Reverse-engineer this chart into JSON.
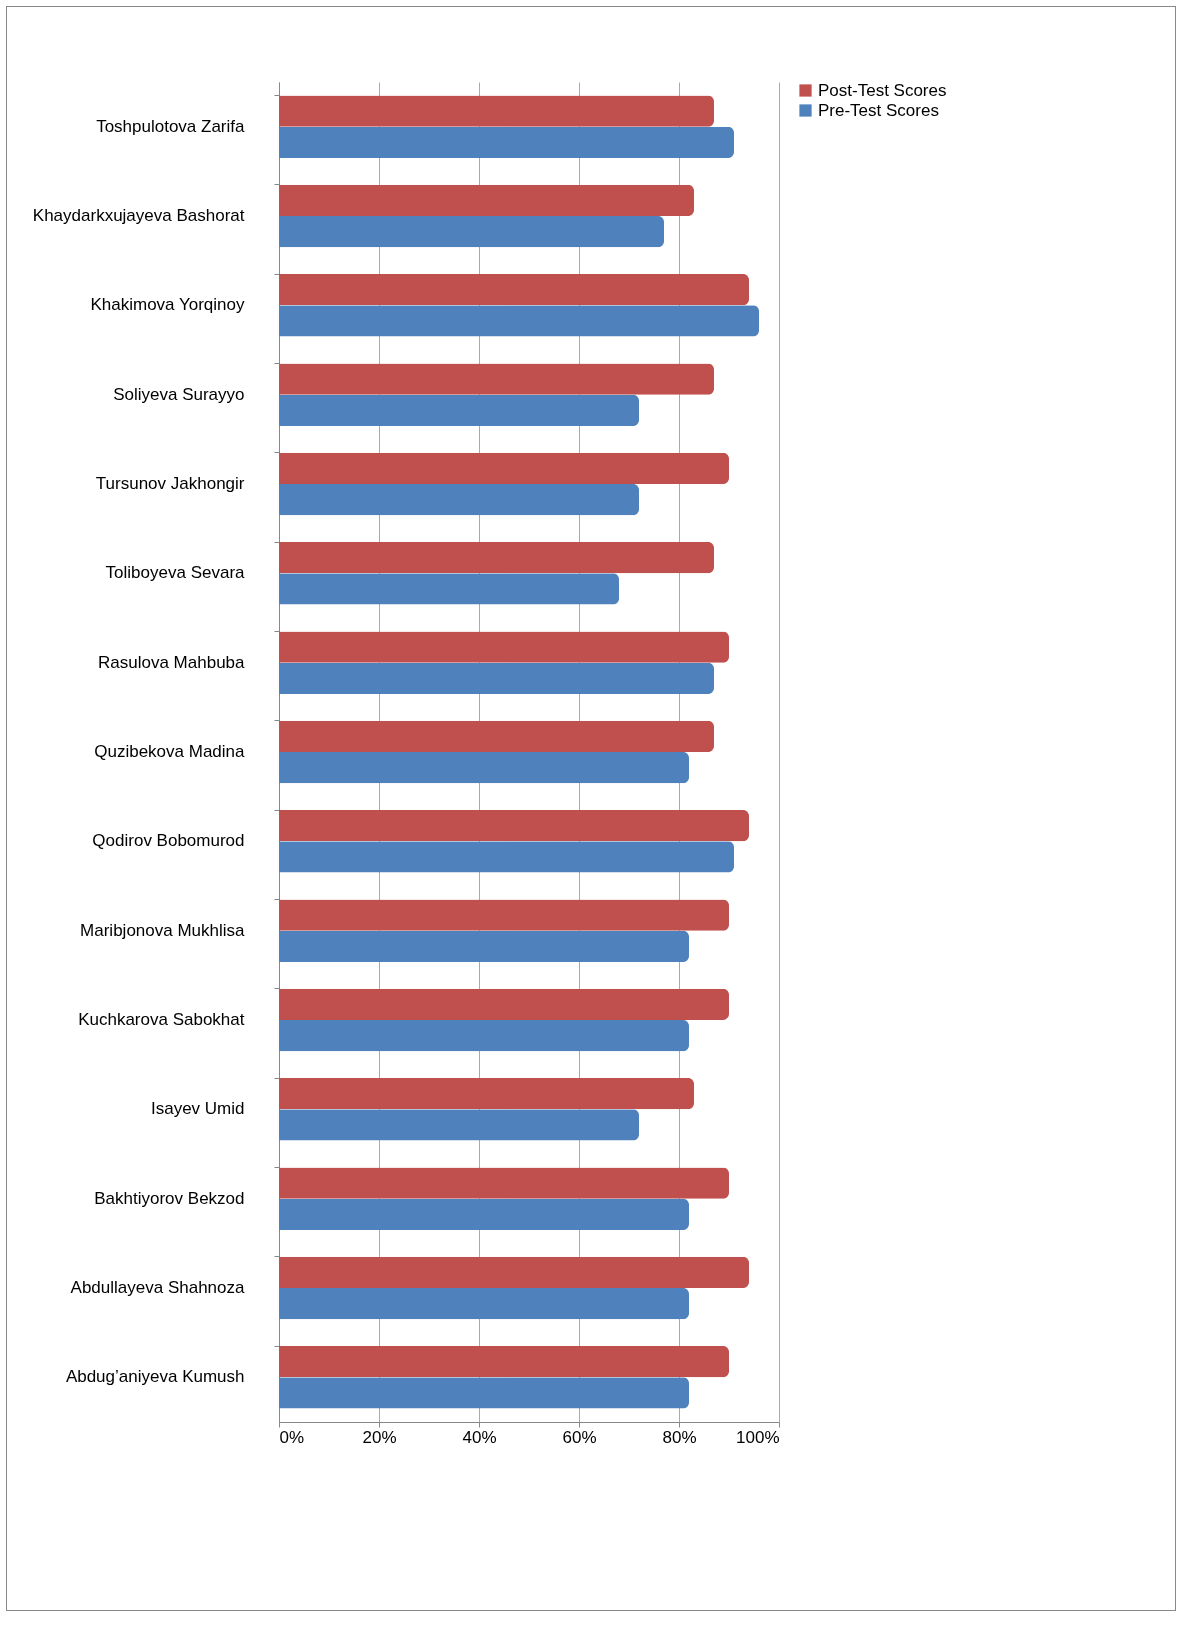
{
  "chart_data": {
    "type": "bar",
    "orientation": "horizontal",
    "categories": [
      "Toshpulotova Zarifa",
      "Khaydarkxujayeva Bashorat",
      "Khakimova Yorqinoy",
      "Soliyeva Surayyo",
      "Tursunov Jakhongir",
      "Toliboyeva Sevara",
      "Rasulova Mahbuba",
      "Quzibekova Madina",
      "Qodirov Bobomurod",
      "Maribjonova Mukhlisa",
      "Kuchkarova Sabokhat",
      "Isayev Umid",
      "Bakhtiyorov Bekzod",
      "Abdullayeva Shahnoza",
      "Abdug’aniyeva Kumush"
    ],
    "series": [
      {
        "name": "Post-Test Scores",
        "color": "#c0504d",
        "values": [
          0.87,
          0.83,
          0.94,
          0.87,
          0.9,
          0.87,
          0.9,
          0.87,
          0.94,
          0.9,
          0.9,
          0.83,
          0.9,
          0.94,
          0.9
        ]
      },
      {
        "name": "Pre-Test Scores",
        "color": "#4f81bd",
        "values": [
          0.91,
          0.77,
          0.96,
          0.72,
          0.72,
          0.68,
          0.87,
          0.82,
          0.91,
          0.82,
          0.82,
          0.72,
          0.82,
          0.82,
          0.82
        ]
      }
    ],
    "xlim": [
      0,
      1
    ],
    "xticks": [
      {
        "value": 0,
        "label": "0%"
      },
      {
        "value": 0.2,
        "label": "20%"
      },
      {
        "value": 0.4,
        "label": "40%"
      },
      {
        "value": 0.6,
        "label": "60%"
      },
      {
        "value": 0.8,
        "label": "80%"
      },
      {
        "value": 1,
        "label": "100%"
      }
    ],
    "grid": "x",
    "legend": "right"
  }
}
